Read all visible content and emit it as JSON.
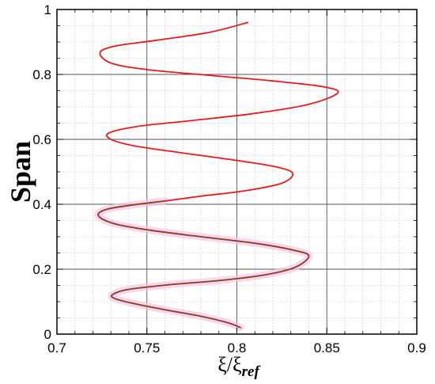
{
  "chart_data": {
    "type": "line",
    "title": "",
    "xlabel": "ξ/ξ",
    "xlabel_sub": "ref",
    "ylabel": "Span",
    "xlim": [
      0.7,
      0.9
    ],
    "ylim": [
      0,
      1
    ],
    "x_ticks": [
      "0.7",
      "0.75",
      "0.8",
      "0.85",
      "0.9"
    ],
    "y_ticks": [
      "0",
      "0.2",
      "0.4",
      "0.6",
      "0.8",
      "1"
    ],
    "grid": {
      "major": true,
      "minor": true
    },
    "colors": {
      "upper": "#e8191f",
      "lower": "#8b3a1d",
      "glow": "#f2c6e6",
      "grid_major": "#555555",
      "grid_minor": "#bdbdbd"
    },
    "series": [
      {
        "color": "#8b3a1d",
        "points": [
          [
            0.802,
            0.02
          ],
          [
            0.795,
            0.035
          ],
          [
            0.78,
            0.055
          ],
          [
            0.76,
            0.075
          ],
          [
            0.742,
            0.095
          ],
          [
            0.732,
            0.11
          ],
          [
            0.731,
            0.122
          ],
          [
            0.74,
            0.138
          ],
          [
            0.762,
            0.152
          ],
          [
            0.79,
            0.165
          ],
          [
            0.815,
            0.182
          ],
          [
            0.832,
            0.205
          ],
          [
            0.84,
            0.24
          ],
          [
            0.832,
            0.258
          ],
          [
            0.81,
            0.28
          ],
          [
            0.78,
            0.3
          ],
          [
            0.752,
            0.32
          ],
          [
            0.732,
            0.34
          ],
          [
            0.723,
            0.365
          ],
          [
            0.728,
            0.385
          ],
          [
            0.745,
            0.4
          ],
          [
            0.76,
            0.41
          ]
        ]
      },
      {
        "color": "#e8191f",
        "points": [
          [
            0.76,
            0.41
          ],
          [
            0.78,
            0.425
          ],
          [
            0.805,
            0.442
          ],
          [
            0.825,
            0.465
          ],
          [
            0.831,
            0.495
          ],
          [
            0.822,
            0.515
          ],
          [
            0.8,
            0.535
          ],
          [
            0.77,
            0.558
          ],
          [
            0.743,
            0.58
          ],
          [
            0.73,
            0.6
          ],
          [
            0.729,
            0.62
          ],
          [
            0.745,
            0.64
          ],
          [
            0.775,
            0.658
          ],
          [
            0.81,
            0.68
          ],
          [
            0.84,
            0.708
          ],
          [
            0.856,
            0.743
          ],
          [
            0.848,
            0.762
          ],
          [
            0.82,
            0.78
          ],
          [
            0.785,
            0.797
          ],
          [
            0.75,
            0.815
          ],
          [
            0.73,
            0.835
          ],
          [
            0.724,
            0.868
          ],
          [
            0.733,
            0.888
          ],
          [
            0.755,
            0.905
          ],
          [
            0.785,
            0.93
          ],
          [
            0.806,
            0.96
          ]
        ]
      }
    ]
  }
}
